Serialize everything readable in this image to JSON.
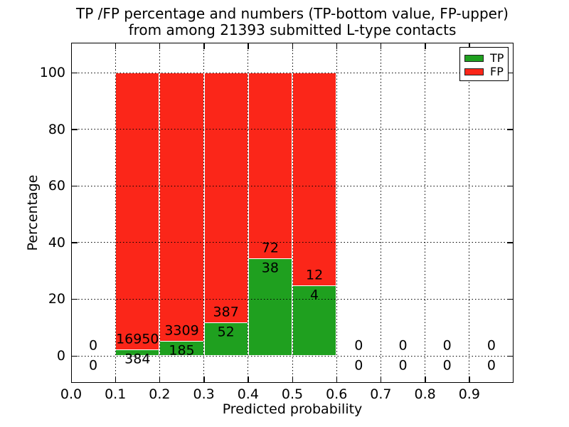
{
  "figure": {
    "background": "#ffffff"
  },
  "chart_data": {
    "type": "bar",
    "subtype": "stacked-percentage",
    "title_line1": "TP /FP percentage and numbers (TP-bottom value, FP-upper)",
    "title_line2": "from among 21393 submitted L-type contacts",
    "total_submitted": 21393,
    "xlabel": "Predicted probability",
    "ylabel": "Percentage",
    "xlim": [
      0.0,
      1.0
    ],
    "ylim": [
      -9.5,
      110.5
    ],
    "x_tick_labels": [
      "0.0",
      "0.1",
      "0.2",
      "0.3",
      "0.4",
      "0.5",
      "0.6",
      "0.7",
      "0.8",
      "0.9"
    ],
    "y_tick_labels": [
      "0",
      "20",
      "40",
      "60",
      "80",
      "100"
    ],
    "y_tick_values": [
      0,
      20,
      40,
      60,
      80,
      100
    ],
    "grid_style": "dotted",
    "legend": {
      "position": "upper-right",
      "items": [
        {
          "label": "TP",
          "color": "#1FA01F"
        },
        {
          "label": "FP",
          "color": "#FB2619"
        }
      ]
    },
    "bins": [
      {
        "x_start": 0.0,
        "x_end": 0.1,
        "tp": 0,
        "fp": 0
      },
      {
        "x_start": 0.1,
        "x_end": 0.2,
        "tp": 384,
        "fp": 16950
      },
      {
        "x_start": 0.2,
        "x_end": 0.3,
        "tp": 185,
        "fp": 3309
      },
      {
        "x_start": 0.3,
        "x_end": 0.4,
        "tp": 52,
        "fp": 387
      },
      {
        "x_start": 0.4,
        "x_end": 0.5,
        "tp": 38,
        "fp": 72
      },
      {
        "x_start": 0.5,
        "x_end": 0.6,
        "tp": 4,
        "fp": 12
      },
      {
        "x_start": 0.6,
        "x_end": 0.7,
        "tp": 0,
        "fp": 0
      },
      {
        "x_start": 0.7,
        "x_end": 0.8,
        "tp": 0,
        "fp": 0
      },
      {
        "x_start": 0.8,
        "x_end": 0.9,
        "tp": 0,
        "fp": 0
      },
      {
        "x_start": 0.9,
        "x_end": 1.0,
        "tp": 0,
        "fp": 0
      }
    ],
    "colors": {
      "tp": "#1FA01F",
      "fp": "#FB2619",
      "grid": "#000000",
      "text": "#000000",
      "bar_edge": "#ffffff"
    }
  }
}
